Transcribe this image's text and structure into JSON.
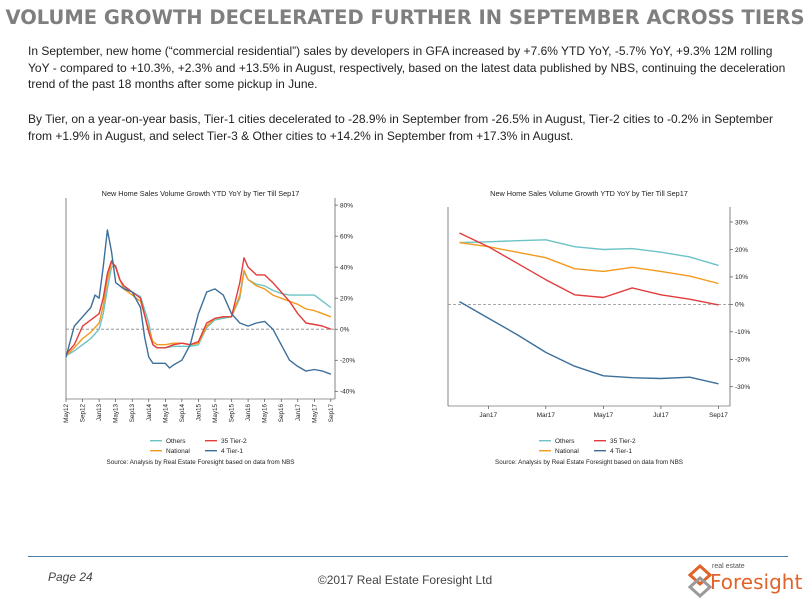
{
  "page_title": "VOLUME GROWTH DECELERATED FURTHER IN SEPTEMBER ACROSS TIERS",
  "paragraph1": "In September, new home (“commercial residential”) sales by developers in GFA increased by +7.6% YTD YoY, -5.7% YoY, +9.3% 12M rolling YoY - compared to +10.3%, +2.3% and +13.5% in August, respectively, based on the latest data published by NBS, continuing the deceleration trend of the past 18 months after some pickup in June.",
  "paragraph2": "By Tier, on a year-on-year basis, Tier-1 cities decelerated to -28.9% in September from -26.5% in August, Tier-2 cities to -0.2% in September from +1.9% in August, and select Tier-3 & Other cities to +14.2% in September from +17.3% in August.",
  "footer": {
    "page": "Page 24",
    "copyright": "©2017 Real Estate Foresight Ltd",
    "logo_small": "real estate",
    "logo_main": "Foresight"
  },
  "colors": {
    "Others": "#6cc3c6",
    "35 Tier-2": "#e23c3c",
    "National": "#f39a1e",
    "4 Tier-1": "#3d6f99",
    "zero_line": "#888888",
    "footer_line": "#4a7fa8",
    "logo": "#e0632a"
  },
  "chart_data": [
    {
      "type": "line",
      "title": "New Home Sales Volume Growth YTD YoY by Tier Till Sep17",
      "source": "Source: Analysis by Real Estate Foresight based on data from NBS",
      "legend_placement": "bottom",
      "y_axis_side": "right",
      "ylim": [
        -45,
        82
      ],
      "y_ticks": [
        80,
        60,
        40,
        20,
        0,
        -20,
        -40
      ],
      "y_tick_labels": [
        "80%",
        "60%",
        "40%",
        "20%",
        "0%",
        "-20%",
        "-40%"
      ],
      "x_range": [
        0,
        65
      ],
      "x_ticks": [
        0,
        4,
        8,
        12,
        16,
        20,
        24,
        28,
        32,
        36,
        40,
        44,
        48,
        52,
        56,
        60,
        64
      ],
      "x_tick_labels": [
        "May12",
        "Sep12",
        "Jan13",
        "May13",
        "Sep13",
        "Jan14",
        "May14",
        "Sep14",
        "Jan15",
        "May15",
        "Sep15",
        "Jan16",
        "May16",
        "Sep16",
        "Jan17",
        "May17",
        "Sep17"
      ],
      "x_labels_rotated": true,
      "grid": false,
      "series": [
        {
          "name": "Others",
          "values": [
            [
              0,
              -17
            ],
            [
              2,
              -14
            ],
            [
              4,
              -10
            ],
            [
              6,
              -6
            ],
            [
              8,
              0
            ],
            [
              9,
              10
            ],
            [
              10,
              26
            ],
            [
              11,
              40
            ],
            [
              12,
              41
            ],
            [
              13,
              32
            ],
            [
              14,
              27
            ],
            [
              16,
              24
            ],
            [
              18,
              21
            ],
            [
              20,
              4
            ],
            [
              21,
              -10
            ],
            [
              22,
              -12
            ],
            [
              24,
              -12
            ],
            [
              26,
              -11
            ],
            [
              28,
              -11
            ],
            [
              30,
              -11
            ],
            [
              32,
              -10
            ],
            [
              34,
              1
            ],
            [
              36,
              6
            ],
            [
              38,
              7
            ],
            [
              40,
              8
            ],
            [
              42,
              20
            ],
            [
              43,
              37
            ],
            [
              44,
              32
            ],
            [
              46,
              29
            ],
            [
              48,
              28
            ],
            [
              50,
              25
            ],
            [
              52,
              23
            ],
            [
              54,
              22
            ],
            [
              56,
              22
            ],
            [
              58,
              22
            ],
            [
              60,
              22
            ],
            [
              62,
              18
            ],
            [
              64,
              14
            ]
          ]
        },
        {
          "name": "National",
          "values": [
            [
              0,
              -17
            ],
            [
              2,
              -12
            ],
            [
              4,
              -6
            ],
            [
              6,
              -2
            ],
            [
              8,
              4
            ],
            [
              9,
              15
            ],
            [
              10,
              32
            ],
            [
              11,
              43
            ],
            [
              12,
              40
            ],
            [
              13,
              32
            ],
            [
              14,
              26
            ],
            [
              16,
              22
            ],
            [
              18,
              18
            ],
            [
              20,
              0
            ],
            [
              21,
              -8
            ],
            [
              22,
              -10
            ],
            [
              24,
              -10
            ],
            [
              26,
              -9
            ],
            [
              28,
              -9
            ],
            [
              30,
              -10
            ],
            [
              32,
              -9
            ],
            [
              34,
              2
            ],
            [
              36,
              7
            ],
            [
              38,
              8
            ],
            [
              40,
              8
            ],
            [
              42,
              22
            ],
            [
              43,
              38
            ],
            [
              44,
              32
            ],
            [
              46,
              28
            ],
            [
              48,
              26
            ],
            [
              50,
              22
            ],
            [
              52,
              20
            ],
            [
              54,
              18
            ],
            [
              56,
              16
            ],
            [
              58,
              13
            ],
            [
              60,
              12
            ],
            [
              62,
              10
            ],
            [
              64,
              8
            ]
          ]
        },
        {
          "name": "35 Tier-2",
          "values": [
            [
              0,
              -16
            ],
            [
              2,
              -10
            ],
            [
              4,
              2
            ],
            [
              6,
              6
            ],
            [
              8,
              10
            ],
            [
              9,
              20
            ],
            [
              10,
              36
            ],
            [
              11,
              44
            ],
            [
              12,
              40
            ],
            [
              13,
              32
            ],
            [
              14,
              28
            ],
            [
              16,
              24
            ],
            [
              18,
              20
            ],
            [
              20,
              -2
            ],
            [
              21,
              -10
            ],
            [
              22,
              -12
            ],
            [
              24,
              -12
            ],
            [
              26,
              -10
            ],
            [
              28,
              -9
            ],
            [
              30,
              -10
            ],
            [
              32,
              -8
            ],
            [
              34,
              4
            ],
            [
              36,
              7
            ],
            [
              38,
              8
            ],
            [
              40,
              8
            ],
            [
              42,
              30
            ],
            [
              43,
              46
            ],
            [
              44,
              40
            ],
            [
              46,
              35
            ],
            [
              48,
              35
            ],
            [
              50,
              30
            ],
            [
              52,
              24
            ],
            [
              54,
              18
            ],
            [
              56,
              10
            ],
            [
              58,
              4
            ],
            [
              60,
              3
            ],
            [
              62,
              2
            ],
            [
              64,
              0
            ]
          ]
        },
        {
          "name": "4 Tier-1",
          "values": [
            [
              0,
              -18
            ],
            [
              2,
              2
            ],
            [
              4,
              8
            ],
            [
              6,
              14
            ],
            [
              7,
              22
            ],
            [
              8,
              20
            ],
            [
              9,
              40
            ],
            [
              10,
              64
            ],
            [
              11,
              50
            ],
            [
              12,
              30
            ],
            [
              14,
              26
            ],
            [
              16,
              24
            ],
            [
              18,
              14
            ],
            [
              19,
              -5
            ],
            [
              20,
              -18
            ],
            [
              21,
              -22
            ],
            [
              22,
              -22
            ],
            [
              24,
              -22
            ],
            [
              25,
              -25
            ],
            [
              26,
              -23
            ],
            [
              28,
              -20
            ],
            [
              30,
              -10
            ],
            [
              32,
              10
            ],
            [
              34,
              24
            ],
            [
              36,
              26
            ],
            [
              38,
              22
            ],
            [
              40,
              10
            ],
            [
              42,
              4
            ],
            [
              44,
              2
            ],
            [
              46,
              4
            ],
            [
              48,
              5
            ],
            [
              50,
              0
            ],
            [
              52,
              -10
            ],
            [
              54,
              -20
            ],
            [
              56,
              -24
            ],
            [
              58,
              -27
            ],
            [
              60,
              -26
            ],
            [
              62,
              -27
            ],
            [
              64,
              -29
            ]
          ]
        }
      ]
    },
    {
      "type": "line",
      "title": "New Home Sales Volume Growth YTD YoY by Tier Till Sep17",
      "source": "Source: Analysis by Real Estate Foresight based on data from NBS",
      "legend_placement": "bottom",
      "y_axis_side": "right",
      "ylim": [
        -37,
        34
      ],
      "y_ticks": [
        30,
        20,
        10,
        0,
        -10,
        -20,
        -30
      ],
      "y_tick_labels": [
        "30%",
        "20%",
        "10%",
        "0%",
        "-10%",
        "-20%",
        "-30%"
      ],
      "x_range": [
        -0.4,
        9.4
      ],
      "x_ticks": [
        1,
        3,
        5,
        7,
        9
      ],
      "x_tick_labels": [
        "Jan17",
        "Mar17",
        "May17",
        "Jul17",
        "Sep17"
      ],
      "x_labels_rotated": false,
      "grid": false,
      "series": [
        {
          "name": "Others",
          "values": [
            [
              0,
              22.5
            ],
            [
              1,
              22.8
            ],
            [
              2,
              23.2
            ],
            [
              3,
              23.5
            ],
            [
              4,
              21
            ],
            [
              5,
              20
            ],
            [
              6,
              20.3
            ],
            [
              7,
              19
            ],
            [
              8,
              17.3
            ],
            [
              9,
              14.2
            ]
          ]
        },
        {
          "name": "National",
          "values": [
            [
              0,
              22.5
            ],
            [
              1,
              21
            ],
            [
              2,
              19
            ],
            [
              3,
              17
            ],
            [
              4,
              13
            ],
            [
              5,
              12
            ],
            [
              6,
              13.5
            ],
            [
              7,
              12
            ],
            [
              8,
              10.3
            ],
            [
              9,
              7.6
            ]
          ]
        },
        {
          "name": "35 Tier-2",
          "values": [
            [
              0,
              26
            ],
            [
              1,
              21
            ],
            [
              2,
              15
            ],
            [
              3,
              9
            ],
            [
              4,
              3.5
            ],
            [
              5,
              2.5
            ],
            [
              6,
              6
            ],
            [
              7,
              3.5
            ],
            [
              8,
              1.9
            ],
            [
              9,
              -0.2
            ]
          ]
        },
        {
          "name": "4 Tier-1",
          "values": [
            [
              0,
              1
            ],
            [
              1,
              -5
            ],
            [
              2,
              -11
            ],
            [
              3,
              -17.5
            ],
            [
              4,
              -22.5
            ],
            [
              5,
              -26
            ],
            [
              6,
              -26.7
            ],
            [
              7,
              -27
            ],
            [
              8,
              -26.5
            ],
            [
              9,
              -28.9
            ]
          ]
        }
      ]
    }
  ],
  "legend_order": [
    "Others",
    "35 Tier-2",
    "National",
    "4 Tier-1"
  ]
}
